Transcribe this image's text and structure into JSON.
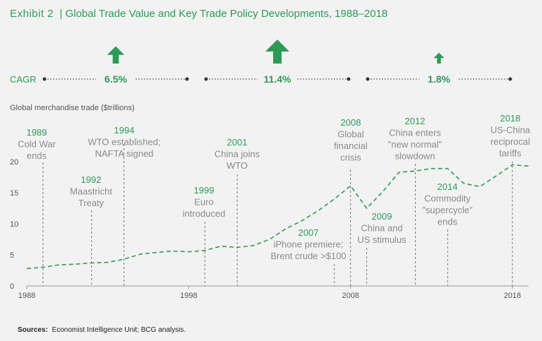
{
  "header": {
    "exhibit_label": "Exhibit 2",
    "title": "Global Trade Value and Key Trade Policy Developments, 1988–2018"
  },
  "cagr": {
    "label": "CAGR",
    "periods": [
      {
        "value": "6.5%",
        "rate": 6.5
      },
      {
        "value": "11.4%",
        "rate": 11.4
      },
      {
        "value": "1.8%",
        "rate": 1.8
      }
    ]
  },
  "footer": {
    "sources_label": "Sources:",
    "sources_text": "Economist Intelligence Unit; BCG analysis."
  },
  "chart_data": {
    "type": "line",
    "title": "Global Trade Value and Key Trade Policy Developments, 1988–2018",
    "ylabel": "Global merchandise trade ($trillions)",
    "xlabel": "",
    "xlim": [
      1988,
      2019
    ],
    "ylim": [
      0,
      20
    ],
    "yticks": [
      0,
      5,
      10,
      15,
      20
    ],
    "xticks": [
      1988,
      1998,
      2008,
      2018
    ],
    "series": [
      {
        "name": "Global merchandise trade",
        "style": "dashed",
        "x": [
          1988,
          1989,
          1990,
          1991,
          1992,
          1993,
          1994,
          1995,
          1996,
          1997,
          1998,
          1999,
          2000,
          2001,
          2002,
          2003,
          2004,
          2005,
          2006,
          2007,
          2008,
          2009,
          2010,
          2011,
          2012,
          2013,
          2014,
          2015,
          2016,
          2017,
          2018,
          2019
        ],
        "y": [
          2.8,
          3.0,
          3.4,
          3.5,
          3.7,
          3.8,
          4.3,
          5.1,
          5.4,
          5.6,
          5.5,
          5.7,
          6.4,
          6.2,
          6.5,
          7.5,
          9.2,
          10.5,
          12.1,
          14.0,
          16.1,
          12.5,
          15.2,
          18.3,
          18.5,
          18.9,
          18.9,
          16.5,
          16.0,
          17.7,
          19.5,
          19.3
        ]
      }
    ],
    "annotations": [
      {
        "year": "1989",
        "x": 1989,
        "text": [
          "Cold War",
          "ends"
        ]
      },
      {
        "year": "1992",
        "x": 1992,
        "text": [
          "Maastricht",
          "Treaty"
        ]
      },
      {
        "year": "1994",
        "x": 1994,
        "text": [
          "WTO established;",
          "NAFTA signed"
        ]
      },
      {
        "year": "1999",
        "x": 1999,
        "text": [
          "Euro",
          "introduced"
        ]
      },
      {
        "year": "2001",
        "x": 2001,
        "text": [
          "China joins",
          "WTO"
        ]
      },
      {
        "year": "2007",
        "x": 2007,
        "text": [
          "iPhone premiere;",
          "Brent crude >$100"
        ]
      },
      {
        "year": "2008",
        "x": 2008,
        "text": [
          "Global",
          "financial",
          "crisis"
        ]
      },
      {
        "year": "2009",
        "x": 2009,
        "text": [
          "China and",
          "US stimulus"
        ]
      },
      {
        "year": "2012",
        "x": 2012,
        "text": [
          "China enters",
          "\"new normal\"",
          "slowdown"
        ]
      },
      {
        "year": "2014",
        "x": 2014,
        "text": [
          "Commodity",
          "\"supercycle\"",
          "ends"
        ]
      },
      {
        "year": "2018",
        "x": 2018,
        "text": [
          "US-China",
          "reciprocal",
          "tariffs"
        ]
      }
    ],
    "colors": {
      "accent": "#2e9a57",
      "line": "#2e9a57",
      "annotation": "#8a8a8a",
      "background": "#f2f2f2"
    }
  }
}
